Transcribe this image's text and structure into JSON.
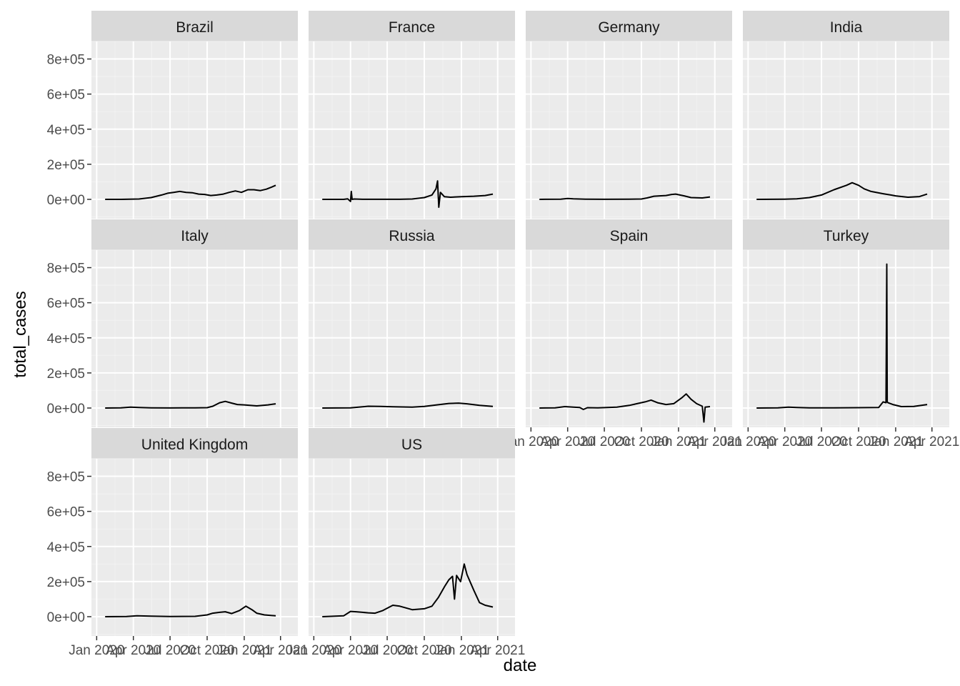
{
  "chart_data": {
    "type": "line",
    "layout": "facet_wrap",
    "xlabel": "date",
    "ylabel": "total_cases",
    "ylim": [
      -110000,
      900000
    ],
    "y_ticks": [
      0,
      200000,
      400000,
      600000,
      800000
    ],
    "y_tick_labels": [
      "0e+00",
      "2e+05",
      "4e+05",
      "6e+05",
      "8e+05"
    ],
    "x_range": [
      "2019-12-19",
      "2021-05-14"
    ],
    "x_ticks": [
      "2020-01-01",
      "2020-04-01",
      "2020-07-01",
      "2020-10-01",
      "2021-01-01",
      "2021-04-01"
    ],
    "x_tick_labels": [
      "Jan 2020",
      "Apr 2020",
      "Jul 2020",
      "Oct 2020",
      "Jan 2021",
      "Apr 2021"
    ],
    "grid": true,
    "line_color": "#000000",
    "panel_background": "#ebebeb",
    "strip_background": "#d9d9d9",
    "series": [
      {
        "name": "Brazil",
        "x": [
          "2020-01-22",
          "2020-03-01",
          "2020-04-15",
          "2020-05-15",
          "2020-06-10",
          "2020-06-25",
          "2020-07-10",
          "2020-07-25",
          "2020-08-10",
          "2020-08-25",
          "2020-09-10",
          "2020-09-25",
          "2020-10-10",
          "2020-10-25",
          "2020-11-10",
          "2020-11-25",
          "2020-12-10",
          "2020-12-25",
          "2021-01-10",
          "2021-01-25",
          "2021-02-10",
          "2021-02-25",
          "2021-03-10",
          "2021-03-20"
        ],
        "values": [
          0,
          0,
          2000,
          10000,
          25000,
          35000,
          40000,
          45000,
          40000,
          38000,
          30000,
          28000,
          22000,
          25000,
          30000,
          40000,
          48000,
          40000,
          55000,
          55000,
          50000,
          58000,
          70000,
          80000
        ]
      },
      {
        "name": "France",
        "x": [
          "2020-01-22",
          "2020-03-15",
          "2020-03-25",
          "2020-04-01",
          "2020-04-03",
          "2020-04-05",
          "2020-04-10",
          "2020-05-01",
          "2020-08-01",
          "2020-09-01",
          "2020-10-01",
          "2020-10-20",
          "2020-10-30",
          "2020-11-03",
          "2020-11-06",
          "2020-11-10",
          "2020-11-20",
          "2020-12-05",
          "2021-01-01",
          "2021-02-01",
          "2021-03-01",
          "2021-03-20"
        ],
        "values": [
          0,
          0,
          3000,
          -12000,
          45000,
          0,
          2000,
          500,
          500,
          2000,
          10000,
          25000,
          60000,
          105000,
          -45000,
          40000,
          15000,
          12000,
          15000,
          18000,
          22000,
          30000
        ]
      },
      {
        "name": "Germany",
        "x": [
          "2020-01-22",
          "2020-03-15",
          "2020-04-01",
          "2020-04-15",
          "2020-05-15",
          "2020-07-01",
          "2020-09-01",
          "2020-10-01",
          "2020-10-15",
          "2020-11-01",
          "2020-11-15",
          "2020-12-01",
          "2020-12-15",
          "2020-12-25",
          "2021-01-15",
          "2021-02-01",
          "2021-03-01",
          "2021-03-20"
        ],
        "values": [
          0,
          1000,
          5000,
          3000,
          1000,
          500,
          1000,
          2000,
          8000,
          18000,
          20000,
          22000,
          28000,
          30000,
          20000,
          10000,
          8000,
          14000
        ]
      },
      {
        "name": "India",
        "x": [
          "2020-01-22",
          "2020-04-01",
          "2020-05-01",
          "2020-06-01",
          "2020-07-01",
          "2020-08-01",
          "2020-09-01",
          "2020-09-15",
          "2020-10-01",
          "2020-10-15",
          "2020-11-01",
          "2020-12-01",
          "2020-12-20",
          "2021-01-01",
          "2021-02-01",
          "2021-03-01",
          "2021-03-20"
        ],
        "values": [
          0,
          1000,
          3000,
          10000,
          25000,
          55000,
          80000,
          95000,
          80000,
          60000,
          45000,
          32000,
          25000,
          20000,
          12000,
          16000,
          30000
        ]
      },
      {
        "name": "Italy",
        "x": [
          "2020-01-22",
          "2020-03-01",
          "2020-03-25",
          "2020-04-15",
          "2020-05-15",
          "2020-07-01",
          "2020-09-01",
          "2020-10-01",
          "2020-10-15",
          "2020-11-01",
          "2020-11-15",
          "2020-12-01",
          "2020-12-15",
          "2021-01-01",
          "2021-02-01",
          "2021-03-01",
          "2021-03-20"
        ],
        "values": [
          0,
          1000,
          5000,
          3000,
          1000,
          200,
          1000,
          2000,
          10000,
          30000,
          38000,
          28000,
          20000,
          18000,
          12000,
          18000,
          24000
        ]
      },
      {
        "name": "Russia",
        "x": [
          "2020-01-22",
          "2020-04-01",
          "2020-05-01",
          "2020-05-15",
          "2020-06-15",
          "2020-07-15",
          "2020-09-01",
          "2020-10-01",
          "2020-11-01",
          "2020-12-01",
          "2020-12-25",
          "2021-01-15",
          "2021-02-15",
          "2021-03-20"
        ],
        "values": [
          0,
          1000,
          7000,
          10000,
          9000,
          7000,
          5000,
          9000,
          18000,
          26000,
          28000,
          24000,
          15000,
          9000
        ]
      },
      {
        "name": "Spain",
        "x": [
          "2020-01-22",
          "2020-03-01",
          "2020-03-25",
          "2020-04-15",
          "2020-05-01",
          "2020-05-10",
          "2020-05-20",
          "2020-06-15",
          "2020-08-01",
          "2020-09-01",
          "2020-09-20",
          "2020-10-10",
          "2020-10-25",
          "2020-11-10",
          "2020-12-01",
          "2020-12-20",
          "2021-01-10",
          "2021-01-20",
          "2021-02-01",
          "2021-02-15",
          "2021-03-01",
          "2021-03-05",
          "2021-03-08",
          "2021-03-20"
        ],
        "values": [
          0,
          1000,
          8000,
          5000,
          3000,
          -8000,
          2000,
          1000,
          5000,
          15000,
          25000,
          35000,
          45000,
          30000,
          20000,
          25000,
          60000,
          80000,
          50000,
          25000,
          10000,
          -80000,
          5000,
          8000
        ]
      },
      {
        "name": "Turkey",
        "x": [
          "2020-01-22",
          "2020-03-15",
          "2020-04-10",
          "2020-05-01",
          "2020-06-01",
          "2020-08-01",
          "2020-10-01",
          "2020-11-20",
          "2020-12-01",
          "2020-12-08",
          "2020-12-10",
          "2020-12-11",
          "2020-12-13",
          "2020-12-25",
          "2021-01-15",
          "2021-02-15",
          "2021-03-20"
        ],
        "values": [
          0,
          1000,
          5000,
          3000,
          1000,
          1000,
          2000,
          3000,
          35000,
          30000,
          820000,
          35000,
          30000,
          20000,
          8000,
          9000,
          20000
        ]
      },
      {
        "name": "United Kingdom",
        "x": [
          "2020-01-22",
          "2020-03-15",
          "2020-04-10",
          "2020-05-15",
          "2020-07-01",
          "2020-09-01",
          "2020-10-01",
          "2020-10-15",
          "2020-11-01",
          "2020-11-15",
          "2020-12-01",
          "2020-12-20",
          "2021-01-05",
          "2021-01-20",
          "2021-02-01",
          "2021-02-20",
          "2021-03-20"
        ],
        "values": [
          0,
          1000,
          5000,
          3000,
          1000,
          2000,
          10000,
          20000,
          25000,
          28000,
          18000,
          35000,
          60000,
          40000,
          20000,
          10000,
          5000
        ]
      },
      {
        "name": "US",
        "x": [
          "2020-01-22",
          "2020-03-15",
          "2020-04-01",
          "2020-04-15",
          "2020-05-15",
          "2020-06-01",
          "2020-06-20",
          "2020-07-15",
          "2020-08-01",
          "2020-09-01",
          "2020-10-01",
          "2020-10-20",
          "2020-11-05",
          "2020-11-20",
          "2020-12-01",
          "2020-12-10",
          "2020-12-15",
          "2020-12-20",
          "2020-12-30",
          "2021-01-08",
          "2021-01-15",
          "2021-02-01",
          "2021-02-15",
          "2021-03-01",
          "2021-03-20"
        ],
        "values": [
          0,
          5000,
          30000,
          28000,
          22000,
          20000,
          35000,
          65000,
          60000,
          40000,
          45000,
          60000,
          110000,
          170000,
          210000,
          230000,
          100000,
          235000,
          200000,
          300000,
          240000,
          150000,
          80000,
          65000,
          55000
        ]
      }
    ]
  }
}
